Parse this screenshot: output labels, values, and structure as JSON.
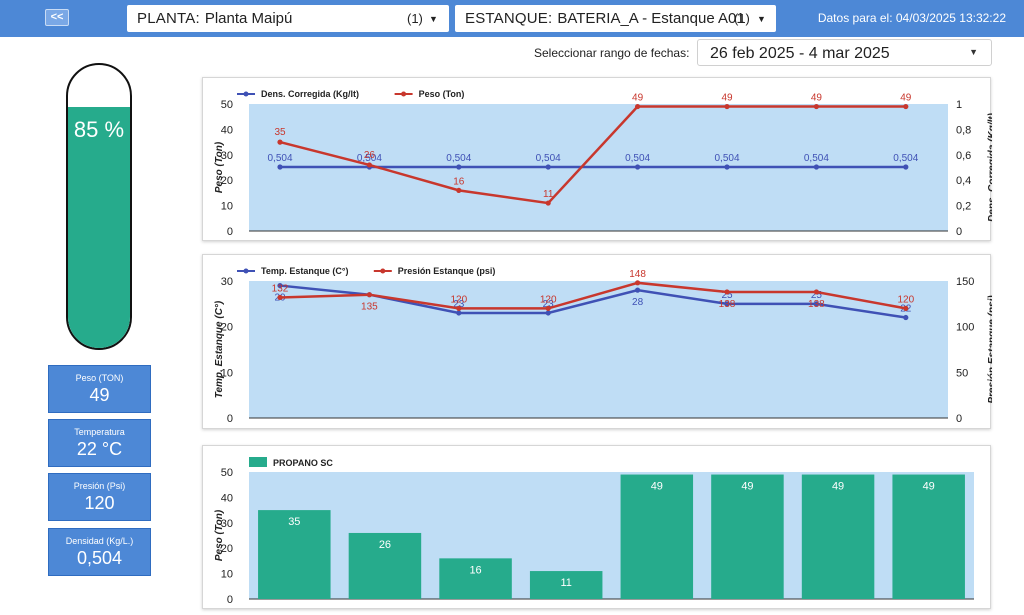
{
  "header": {
    "back_label": "<<",
    "planta": {
      "label": "PLANTA:",
      "value": "Planta Maipú",
      "count": "(1)"
    },
    "estanque": {
      "label": "ESTANQUE:",
      "value": "BATERIA_A - Estanque A01",
      "count": "(1)"
    },
    "updated": "Datos para el: 04/03/2025 13:32:22"
  },
  "date_range": {
    "label": "Seleccionar rango de fechas:",
    "value": "26 feb 2025 - 4 mar 2025"
  },
  "tank": {
    "level_pct": 85,
    "label": "85 %",
    "fill_color": "#26ab8c"
  },
  "cards": [
    {
      "title": "Peso (TON)",
      "value": "49"
    },
    {
      "title": "Temperatura",
      "value": "22 °C"
    },
    {
      "title": "Presión (Psi)",
      "value": "120"
    },
    {
      "title": "Densidad (Kg/L.)",
      "value": "0,504"
    }
  ],
  "chart_data": [
    {
      "type": "line",
      "series": [
        {
          "name": "Dens. Corregida (Kg/lt)",
          "axis": "right",
          "color": "#3f51b5",
          "values": [
            0.504,
            0.504,
            0.504,
            0.504,
            0.504,
            0.504,
            0.504,
            0.504
          ],
          "labels": [
            "0,504",
            "0,504",
            "0,504",
            "0,504",
            "0,504",
            "0,504",
            "0,504",
            "0,504"
          ]
        },
        {
          "name": "Peso (Ton)",
          "axis": "left",
          "color": "#c8372d",
          "values": [
            35,
            26,
            16,
            11,
            49,
            49,
            49,
            49
          ],
          "labels": [
            "35",
            "26",
            "16",
            "11",
            "49",
            "49",
            "49",
            "49"
          ]
        }
      ],
      "ylabel": "Peso (Ton)",
      "y2label": "Dens. Corregida (Kg/lt)",
      "ylim": [
        0,
        50
      ],
      "y2lim": [
        0,
        1
      ],
      "yticks": [
        "0",
        "10",
        "20",
        "30",
        "40",
        "50"
      ],
      "y2ticks": [
        "0",
        "0,2",
        "0,4",
        "0,6",
        "0,8",
        "1"
      ],
      "legend": "top-left",
      "background": "#bfddf5"
    },
    {
      "type": "line",
      "series": [
        {
          "name": "Temp. Estanque (C°)",
          "axis": "left",
          "color": "#3f51b5",
          "values": [
            29,
            27,
            23,
            23,
            28,
            25,
            25,
            22
          ],
          "labels": [
            "29",
            "",
            "23",
            "23",
            "28",
            "25",
            "25",
            "22"
          ]
        },
        {
          "name": "Presión Estanque (psi)",
          "axis": "right",
          "color": "#c8372d",
          "values": [
            132,
            135,
            120,
            120,
            148,
            138,
            138,
            120
          ],
          "labels": [
            "132",
            "135",
            "120",
            "120",
            "148",
            "138",
            "138",
            "120"
          ]
        }
      ],
      "ylabel": "Temp. Estanque (C°)",
      "y2label": "Presión Estanque (psi)",
      "ylim": [
        0,
        30
      ],
      "y2lim": [
        0,
        150
      ],
      "yticks": [
        "0",
        "10",
        "20",
        "30"
      ],
      "y2ticks": [
        "0",
        "50",
        "100",
        "150"
      ],
      "legend": "top-left",
      "background": "#bfddf5"
    },
    {
      "type": "bar",
      "series": [
        {
          "name": "PROPANO SC",
          "color": "#26ab8c",
          "values": [
            35,
            26,
            16,
            11,
            49,
            49,
            49,
            49
          ],
          "labels": [
            "35",
            "26",
            "16",
            "11",
            "49",
            "49",
            "49",
            "49"
          ]
        }
      ],
      "ylabel": "Peso (Ton)",
      "ylim": [
        0,
        50
      ],
      "yticks": [
        "0",
        "10",
        "20",
        "30",
        "40",
        "50"
      ],
      "legend": "top-left",
      "background": "#bfddf5"
    }
  ]
}
